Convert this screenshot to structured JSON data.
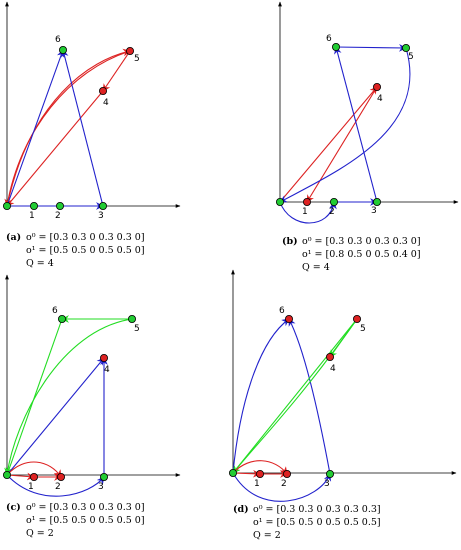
{
  "panels": [
    {
      "id": "a",
      "caption": {
        "tag": "(a)",
        "o0": "o⁰ = [0.3 0.3 0 0.3 0.3 0]",
        "o1": "o¹ = [0.5 0.5 0 0.5 0.5 0]",
        "q": "Q = 4"
      },
      "nodes": [
        {
          "label": "",
          "color": "#22cc33"
        },
        {
          "label": "1",
          "color": "#22cc33"
        },
        {
          "label": "2",
          "color": "#22cc33"
        },
        {
          "label": "3",
          "color": "#22cc33"
        },
        {
          "label": "4",
          "color": "#dd2222"
        },
        {
          "label": "5",
          "color": "#dd2222"
        },
        {
          "label": "6",
          "color": "#22cc33"
        }
      ]
    },
    {
      "id": "b",
      "caption": {
        "tag": "(b)",
        "o0": "o⁰ = [0.3 0.3 0 0.3 0.3 0]",
        "o1": "o¹ = [0.8 0.5 0 0.5 0.4 0]",
        "q": "Q = 4"
      },
      "nodes": [
        {
          "label": "",
          "color": "#22cc33"
        },
        {
          "label": "1",
          "color": "#dd2222"
        },
        {
          "label": "2",
          "color": "#22cc33"
        },
        {
          "label": "3",
          "color": "#22cc33"
        },
        {
          "label": "4",
          "color": "#dd2222"
        },
        {
          "label": "5",
          "color": "#22cc33"
        },
        {
          "label": "6",
          "color": "#22cc33"
        }
      ]
    },
    {
      "id": "c",
      "caption": {
        "tag": "(c)",
        "o0": "o⁰ = [0.3 0.3 0 0.3 0.3 0]",
        "o1": "o¹ = [0.5 0.5 0 0.5 0.5 0]",
        "q": "Q = 2"
      },
      "nodes": [
        {
          "label": "",
          "color": "#22cc33"
        },
        {
          "label": "1",
          "color": "#dd2222"
        },
        {
          "label": "2",
          "color": "#dd2222"
        },
        {
          "label": "3",
          "color": "#22cc33"
        },
        {
          "label": "4",
          "color": "#dd2222"
        },
        {
          "label": "5",
          "color": "#22cc33"
        },
        {
          "label": "6",
          "color": "#22cc33"
        }
      ]
    },
    {
      "id": "d",
      "caption": {
        "tag": "(d)",
        "o0": "o⁰ = [0.3 0.3 0 0.3 0.3 0.3]",
        "o1": "o¹ = [0.5 0.5 0 0.5 0.5 0.5]",
        "q": "Q = 2"
      },
      "nodes": [
        {
          "label": "",
          "color": "#22cc33"
        },
        {
          "label": "1",
          "color": "#dd2222"
        },
        {
          "label": "2",
          "color": "#dd2222"
        },
        {
          "label": "3",
          "color": "#22cc33"
        },
        {
          "label": "4",
          "color": "#dd2222"
        },
        {
          "label": "5",
          "color": "#dd2222"
        },
        {
          "label": "6",
          "color": "#dd2222"
        }
      ]
    }
  ],
  "colors": {
    "red": "#dd2222",
    "blue": "#2222cc",
    "green": "#22dd22",
    "axis": "#000000"
  }
}
